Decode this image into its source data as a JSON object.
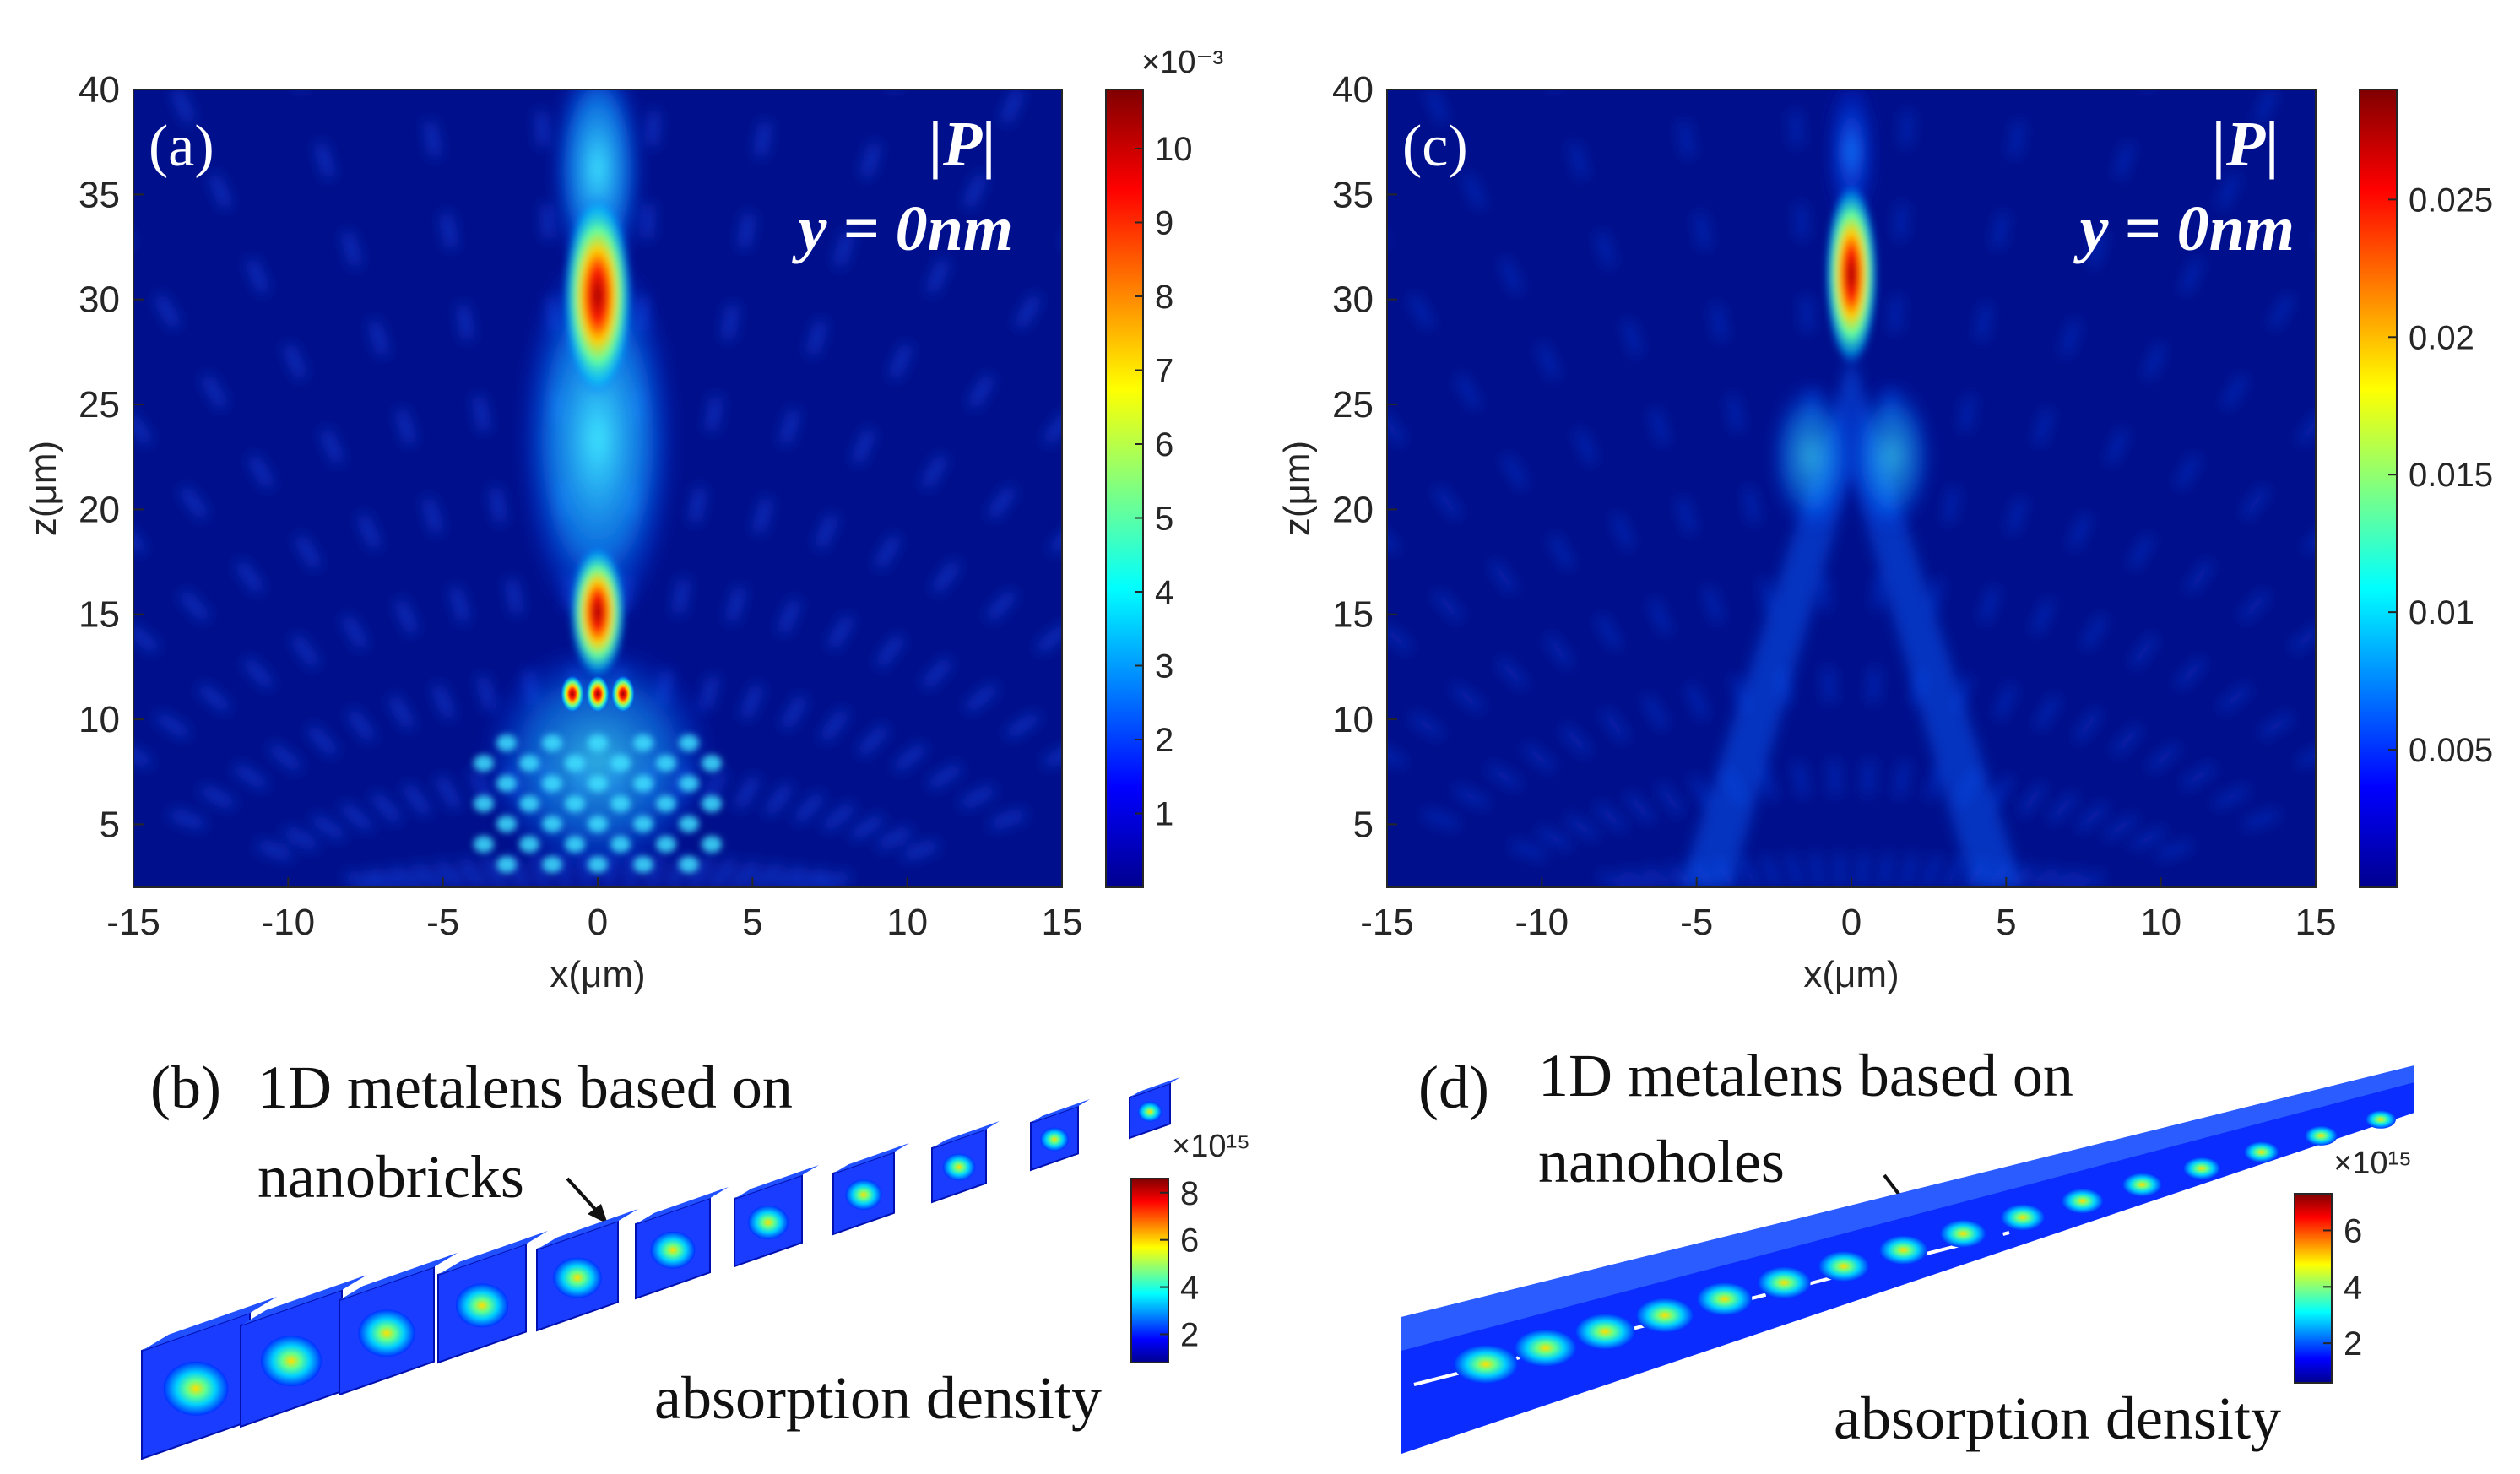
{
  "chart_data": [
    {
      "id": "a",
      "type": "heatmap",
      "panel_label": "(a)",
      "quantity": "|P|",
      "plane": "y = 0nm",
      "xlabel": "x(μm)",
      "ylabel": "z(μm)",
      "xlim": [
        -15,
        15
      ],
      "ylim": [
        2,
        40
      ],
      "xticks": [
        -15,
        -10,
        -5,
        0,
        5,
        10,
        15
      ],
      "yticks": [
        5,
        10,
        15,
        20,
        25,
        30,
        35,
        40
      ],
      "colorbar": {
        "min": 0,
        "max": 10.8,
        "exponent": "×10⁻³",
        "ticks": [
          1,
          2,
          3,
          4,
          5,
          6,
          7,
          8,
          9,
          10
        ],
        "tick_labels": [
          "1",
          "2",
          "3",
          "4",
          "5",
          "6",
          "7",
          "8",
          "9",
          "10"
        ]
      },
      "features": [
        {
          "name": "main focal spot",
          "x": 0,
          "z": 30,
          "value": 10.8
        },
        {
          "name": "secondary focal spot",
          "x": 0,
          "z": 15,
          "value": 10.0
        },
        {
          "name": "beam waist",
          "x": 0,
          "z": 21,
          "value": 4.5
        },
        {
          "name": "near-field spots",
          "x": [
            -0.8,
            0,
            0.8
          ],
          "z": 11.5,
          "value": 8.5
        }
      ]
    },
    {
      "id": "c",
      "type": "heatmap",
      "panel_label": "(c)",
      "quantity": "|P|",
      "plane": "y = 0nm",
      "xlabel": "x(μm)",
      "ylabel": "z(μm)",
      "xlim": [
        -15,
        15
      ],
      "ylim": [
        2,
        40
      ],
      "xticks": [
        -15,
        -10,
        -5,
        0,
        5,
        10,
        15
      ],
      "yticks": [
        5,
        10,
        15,
        20,
        25,
        30,
        35,
        40
      ],
      "colorbar": {
        "min": 0,
        "max": 0.029,
        "exponent": "",
        "ticks": [
          0.005,
          0.01,
          0.015,
          0.02,
          0.025
        ],
        "tick_labels": [
          "0.005",
          "0.01",
          "0.015",
          "0.02",
          "0.025"
        ]
      },
      "features": [
        {
          "name": "focal spot",
          "x": 0,
          "z": 31,
          "value": 0.029
        },
        {
          "name": "converging side lobes",
          "x": [
            -2,
            2
          ],
          "z": 22,
          "value": 0.009
        }
      ]
    }
  ],
  "panel_b": {
    "label": "(b)",
    "title_line1": "1D metalens based on",
    "title_line2": "nanobricks",
    "colorbar_exponent": "×10¹⁵",
    "colorbar_ticks": [
      "2",
      "4",
      "6",
      "8"
    ],
    "colorbar_max": 8.6,
    "caption": "absorption density"
  },
  "panel_d": {
    "label": "(d)",
    "title_line1": "1D metalens based on",
    "title_line2": "nanoholes",
    "colorbar_exponent": "×10¹⁵",
    "colorbar_ticks": [
      "2",
      "4",
      "6"
    ],
    "colorbar_max": 7.3,
    "caption": "absorption density"
  },
  "colors": {
    "background": "#ffffff",
    "field_low": "#00008f",
    "field_high": "#800000",
    "axis_text": "#262626",
    "panel_text": "#ffffff"
  }
}
